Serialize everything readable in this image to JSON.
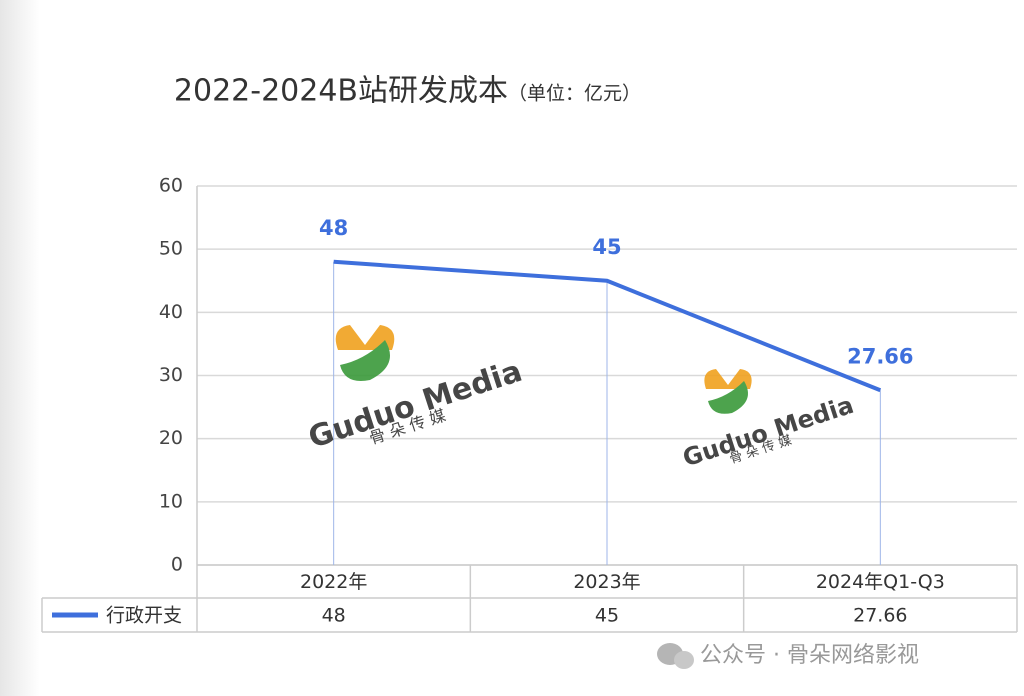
{
  "chart_data": {
    "type": "line",
    "title": "2022-2024B站研发成本",
    "subtitle": "（单位：亿元）",
    "categories": [
      "2022年",
      "2023年",
      "2024年Q1-Q3"
    ],
    "series": [
      {
        "name": "行政开支",
        "color": "#3e6fdc",
        "values": [
          48,
          45,
          27.66
        ]
      }
    ],
    "ylim": [
      0,
      60
    ],
    "yticks": [
      0,
      10,
      20,
      30,
      40,
      50,
      60
    ],
    "grid": true
  },
  "watermark": {
    "brand": "Guduo Media",
    "brand_cn": "骨 朵 传 媒"
  },
  "footer": "公众号 · 骨朵网络影视"
}
